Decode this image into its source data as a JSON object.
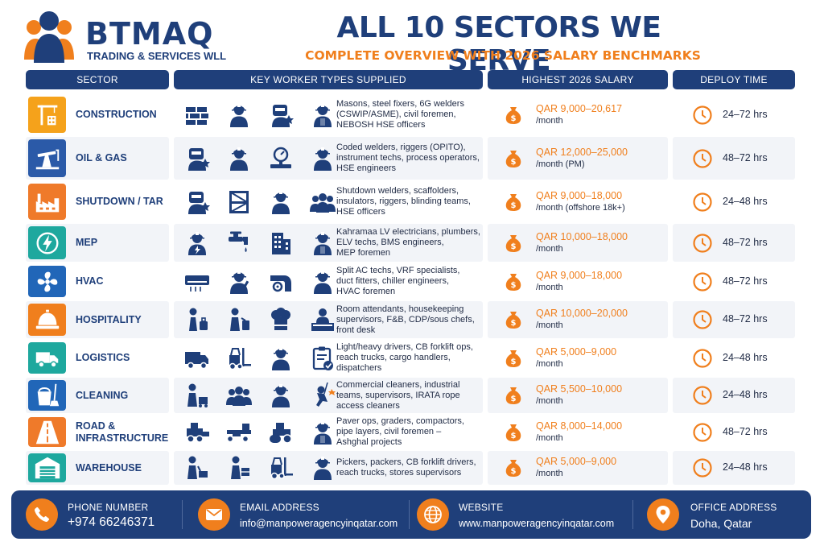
{
  "brand": {
    "name": "BTMAQ",
    "subtitle": "TRADING & SERVICES WLL"
  },
  "title": "ALL 10 SECTORS WE SERVE",
  "subtitle": "COMPLETE OVERVIEW WITH 2026 SALARY BENCHMARKS",
  "headers": {
    "sector": "SECTOR",
    "workers": "KEY WORKER TYPES SUPPLIED",
    "salary": "HIGHEST 2026 SALARY",
    "deploy": "DEPLOY TIME"
  },
  "colors": {
    "navy": "#1f3f7a",
    "orange": "#f07f1d"
  },
  "rows": [
    {
      "sector_lines": [
        "CONSTRUCTION"
      ],
      "sector_icon": "crane-building-icon",
      "icon_color": "#f5a21b",
      "worker_icons": [
        "bricks-icon",
        "helmet-worker-icon",
        "welder-icon",
        "foreman-icon"
      ],
      "desc_lines": [
        "Masons, steel fixers, 6G welders",
        "(CSWIP/ASME), civil foremen,",
        "NEBOSH HSE officers"
      ],
      "salary": "QAR 9,000–20,617",
      "per": "/month",
      "deploy": "24–72 hrs"
    },
    {
      "sector_lines": [
        "OIL & GAS"
      ],
      "sector_icon": "oil-pump-icon",
      "icon_color": "#2b5aa8",
      "worker_icons": [
        "welder-icon",
        "helmet-worker-icon",
        "pressure-gauge-icon",
        "helmet-worker-icon"
      ],
      "desc_lines": [
        "Coded welders, riggers (OPITO),",
        "instrument techs, process operators,",
        "HSE engineers"
      ],
      "salary": "QAR 12,000–25,000",
      "per": "/month (PM)",
      "deploy": "48–72 hrs"
    },
    {
      "sector_lines": [
        "SHUTDOWN / TAR"
      ],
      "sector_icon": "factory-icon",
      "icon_color": "#ef7a2a",
      "worker_icons": [
        "welder-icon",
        "scaffold-icon",
        "helmet-worker-icon",
        "team-icon"
      ],
      "desc_lines": [
        "Shutdown welders, scaffolders,",
        "insulators, riggers, blinding teams,",
        "HSE officers"
      ],
      "salary": "QAR 9,000–18,000",
      "per": "/month (offshore 18k+)",
      "deploy": "24–48 hrs"
    },
    {
      "sector_lines": [
        "MEP"
      ],
      "sector_icon": "electric-bolt-icon",
      "icon_color": "#1ea89e",
      "worker_icons": [
        "electrician-icon",
        "faucet-icon",
        "building-icon",
        "foreman-icon"
      ],
      "desc_lines": [
        "Kahramaa LV electricians, plumbers,",
        "ELV techs, BMS engineers,",
        "MEP foremen"
      ],
      "salary": "QAR 10,000–18,000",
      "per": "/month",
      "deploy": "48–72 hrs"
    },
    {
      "sector_lines": [
        "HVAC"
      ],
      "sector_icon": "fan-icon",
      "icon_color": "#2166b8",
      "worker_icons": [
        "air-conditioner-icon",
        "technician-icon",
        "duct-icon",
        "helmet-worker-icon"
      ],
      "desc_lines": [
        "Split AC techs, VRF specialists,",
        "duct fitters, chiller engineers,",
        "HVAC foremen"
      ],
      "salary": "QAR 9,000–18,000",
      "per": "/month",
      "deploy": "48–72 hrs"
    },
    {
      "sector_lines": [
        "HOSPITALITY"
      ],
      "sector_icon": "service-bell-icon",
      "icon_color": "#f07f1d",
      "worker_icons": [
        "luggage-attendant-icon",
        "housekeeper-icon",
        "chef-hat-icon",
        "front-desk-icon"
      ],
      "desc_lines": [
        "Room attendants, housekeeping",
        "supervisors, F&B, CDP/sous chefs,",
        "front desk"
      ],
      "salary": "QAR 10,000–20,000",
      "per": "/month",
      "deploy": "48–72 hrs"
    },
    {
      "sector_lines": [
        "LOGISTICS"
      ],
      "sector_icon": "truck-icon",
      "icon_color": "#1ea89e",
      "worker_icons": [
        "truck-icon",
        "forklift-icon",
        "helmet-worker-icon",
        "checklist-icon"
      ],
      "desc_lines": [
        "Light/heavy drivers, CB forklift ops,",
        "reach trucks, cargo handlers,",
        "dispatchers"
      ],
      "salary": "QAR 5,000–9,000",
      "per": "/month",
      "deploy": "24–48 hrs"
    },
    {
      "sector_lines": [
        "CLEANING"
      ],
      "sector_icon": "bucket-mop-icon",
      "icon_color": "#2166b8",
      "worker_icons": [
        "cleaner-cart-icon",
        "team-icon",
        "helmet-worker-icon",
        "rope-access-icon"
      ],
      "desc_lines": [
        "Commercial cleaners, industrial",
        "teams, supervisors, IRATA rope",
        "access cleaners"
      ],
      "salary": "QAR 5,500–10,000",
      "per": "/month",
      "deploy": "24–48 hrs"
    },
    {
      "sector_lines": [
        "ROAD &",
        "INFRASTRUCTURE"
      ],
      "sector_icon": "road-icon",
      "icon_color": "#ef7a2a",
      "worker_icons": [
        "paver-icon",
        "grader-icon",
        "roller-compactor-icon",
        "foreman-icon"
      ],
      "desc_lines": [
        "Paver ops, graders, compactors,",
        "pipe layers, civil foremen –",
        "Ashghal projects"
      ],
      "salary": "QAR 8,000–14,000",
      "per": "/month",
      "deploy": "48–72 hrs"
    },
    {
      "sector_lines": [
        "WAREHOUSE"
      ],
      "sector_icon": "warehouse-icon",
      "icon_color": "#1ea89e",
      "worker_icons": [
        "picker-icon",
        "packer-icon",
        "forklift-icon",
        "helmet-worker-icon"
      ],
      "desc_lines": [
        "Pickers, packers, CB forklift drivers,",
        "reach trucks, stores supervisors"
      ],
      "salary": "QAR 5,000–9,000",
      "per": "/month",
      "deploy": "24–48 hrs"
    }
  ],
  "footer": {
    "phone_label": "PHONE NUMBER",
    "phone": "+974 66246371",
    "email_label": "EMAIL ADDRESS",
    "email": "info@manpoweragencyinqatar.com",
    "website_label": "WEBSITE",
    "website": "www.manpoweragencyinqatar.com",
    "address_label": "OFFICE ADDRESS",
    "address": "Doha, Qatar"
  }
}
